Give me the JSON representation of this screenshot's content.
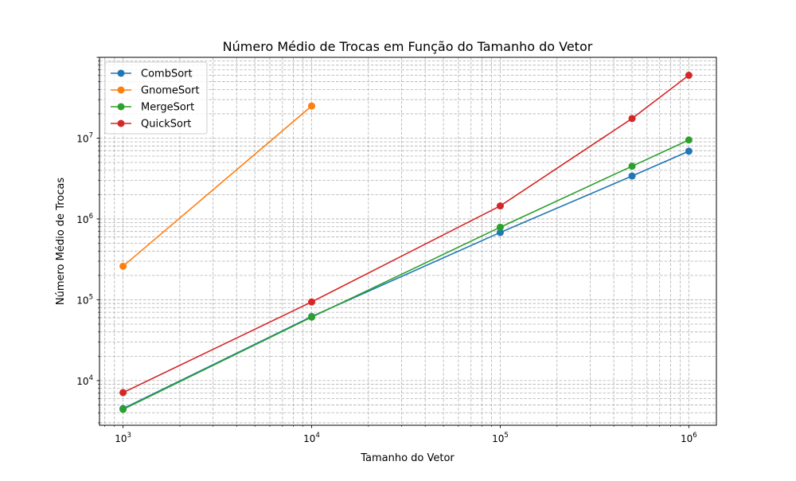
{
  "chart_data": {
    "type": "line",
    "title": "Número Médio de Trocas em Função do Tamanho do Vetor",
    "xlabel": "Tamanho do Vetor",
    "ylabel": "Número Médio de Trocas",
    "xscale": "log",
    "yscale": "log",
    "xlim": [
      750,
      1400000
    ],
    "ylim": [
      2800,
      100000000
    ],
    "xticks": [
      {
        "base": "10",
        "exp": "3",
        "value": 1000
      },
      {
        "base": "10",
        "exp": "4",
        "value": 10000
      },
      {
        "base": "10",
        "exp": "5",
        "value": 100000
      },
      {
        "base": "10",
        "exp": "6",
        "value": 1000000
      }
    ],
    "yticks": [
      {
        "base": "10",
        "exp": "4",
        "value": 10000
      },
      {
        "base": "10",
        "exp": "5",
        "value": 100000
      },
      {
        "base": "10",
        "exp": "6",
        "value": 1000000
      },
      {
        "base": "10",
        "exp": "7",
        "value": 10000000
      }
    ],
    "grid": "major and minor, dashed",
    "legend_position": "upper-left",
    "markers": "circle",
    "series": [
      {
        "name": "CombSort",
        "color": "#1f77b4",
        "x": [
          1000,
          10000,
          100000,
          500000,
          1000000
        ],
        "y": [
          4500,
          62000,
          680000,
          3400000,
          6900000
        ]
      },
      {
        "name": "GnomeSort",
        "color": "#ff7f0e",
        "x": [
          1000,
          10000
        ],
        "y": [
          260000,
          25000000
        ]
      },
      {
        "name": "MergeSort",
        "color": "#2ca02c",
        "x": [
          1000,
          10000,
          100000,
          500000,
          1000000
        ],
        "y": [
          4400,
          61000,
          790000,
          4500000,
          9500000
        ]
      },
      {
        "name": "QuickSort",
        "color": "#d62728",
        "x": [
          1000,
          10000,
          100000,
          500000,
          1000000
        ],
        "y": [
          7100,
          94000,
          1450000,
          17500000,
          60000000
        ]
      }
    ]
  }
}
